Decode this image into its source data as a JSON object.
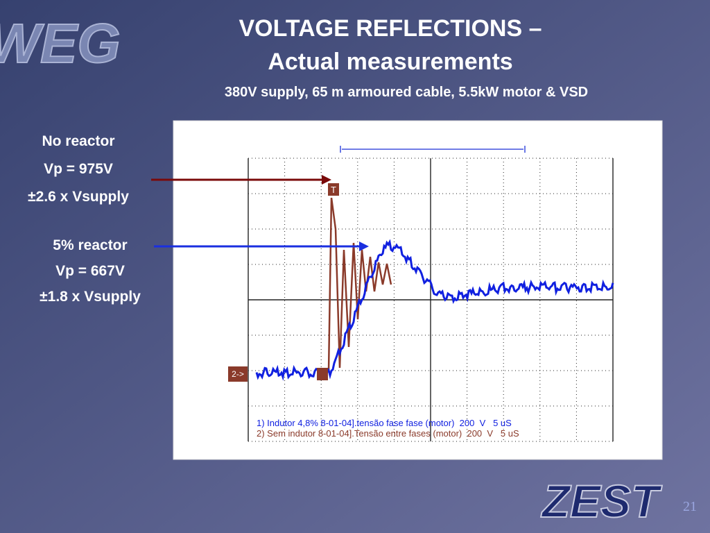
{
  "header": {
    "logo": "WEG",
    "title_line1": "VOLTAGE REFLECTIONS –",
    "title_line2": "Actual measurements",
    "subtitle": "380V supply, 65 m armoured cable, 5.5kW motor & VSD"
  },
  "annotations": [
    {
      "lines": [
        "No reactor",
        "Vp = 975V",
        "±2.6 x Vsupply"
      ]
    },
    {
      "lines": [
        "5% reactor",
        "Vp = 667V",
        "±1.8 x Vsupply"
      ]
    }
  ],
  "scope": {
    "channel_marker": "2->",
    "trigger_marker": "T",
    "legend": [
      "1) Indutor 4,8% 8-01-04].tensão fase fase (motor)  200  V   5 uS",
      "2) Sem indutor 8-01-04].Tensão entre fases (motor)  200  V   5 uS"
    ]
  },
  "footer": {
    "logo": "ZEST",
    "page": "21"
  }
}
